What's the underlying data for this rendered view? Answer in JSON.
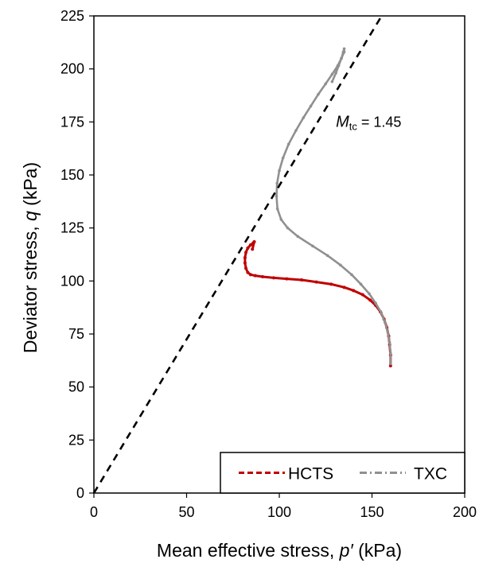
{
  "chart_data": {
    "type": "scatter",
    "xlabel_prefix": "Mean effective stress, ",
    "xlabel_var": "p′",
    "xlabel_suffix": " (kPa)",
    "ylabel_prefix": "Deviator stress, ",
    "ylabel_var": "q",
    "ylabel_suffix": " (kPa)",
    "xlim": [
      0,
      200
    ],
    "ylim": [
      0,
      225
    ],
    "x_ticks": [
      0,
      50,
      100,
      150,
      200
    ],
    "y_ticks": [
      0,
      25,
      50,
      75,
      100,
      125,
      150,
      175,
      200,
      225
    ],
    "x_tick_labels": [
      "0",
      "50",
      "100",
      "150",
      "200"
    ],
    "y_tick_labels": [
      "0",
      "25",
      "50",
      "75",
      "100",
      "125",
      "150",
      "175",
      "200",
      "225"
    ],
    "grid": false,
    "legend_position": "bottom-right",
    "annotation": {
      "var": "M",
      "sub": "tc",
      "text": " = 1.45",
      "anchor": {
        "x": 130.5,
        "y": 175
      }
    },
    "line": {
      "name": "Mtc = 1.45",
      "slope": 1.45,
      "color": "#000000",
      "style": "dashed",
      "x": [
        0,
        155.2
      ],
      "y": [
        0,
        225
      ]
    },
    "series": [
      {
        "name": "HCTS",
        "color": "#c00000",
        "style": "dashed",
        "x": [
          160,
          160,
          159.5,
          159,
          158,
          156.5,
          154.5,
          152,
          149,
          145,
          140,
          135,
          128,
          120,
          112,
          104,
          97,
          91,
          87,
          84.5,
          83,
          82,
          81.5,
          81.5,
          82,
          83,
          84.5,
          86,
          86.5,
          85.5
        ],
        "y": [
          60,
          65,
          70,
          74,
          78,
          82,
          85.5,
          88.5,
          91,
          93.5,
          95.5,
          97,
          98.5,
          99.5,
          100.5,
          101,
          101.5,
          102,
          102.5,
          103,
          104,
          106,
          108.5,
          111,
          113.5,
          115.5,
          117,
          118,
          118.5,
          115
        ]
      },
      {
        "name": "TXC",
        "color": "#909090",
        "style": "dashdot",
        "x": [
          160,
          160,
          159.5,
          158.5,
          157,
          155,
          152,
          148.5,
          144,
          139,
          133,
          126,
          118,
          110,
          104.5,
          101,
          99,
          98.5,
          98.8,
          100,
          102,
          105,
          109,
          113,
          117,
          121,
          125,
          128.5,
          131.5,
          133.5,
          135,
          135,
          134.5,
          133.5,
          132,
          130.5,
          128.5
        ],
        "y": [
          61,
          66,
          71,
          76,
          80.5,
          85,
          89.5,
          94,
          98.5,
          103,
          107.5,
          112,
          116.5,
          121,
          125,
          129,
          134,
          140,
          146,
          152,
          158,
          164.5,
          171,
          177,
          182.5,
          188,
          193,
          197.5,
          201.5,
          205,
          208,
          209.5,
          208,
          205,
          201.5,
          198,
          194
        ]
      }
    ],
    "legend": [
      {
        "label": "HCTS"
      },
      {
        "label": "TXC"
      }
    ]
  }
}
